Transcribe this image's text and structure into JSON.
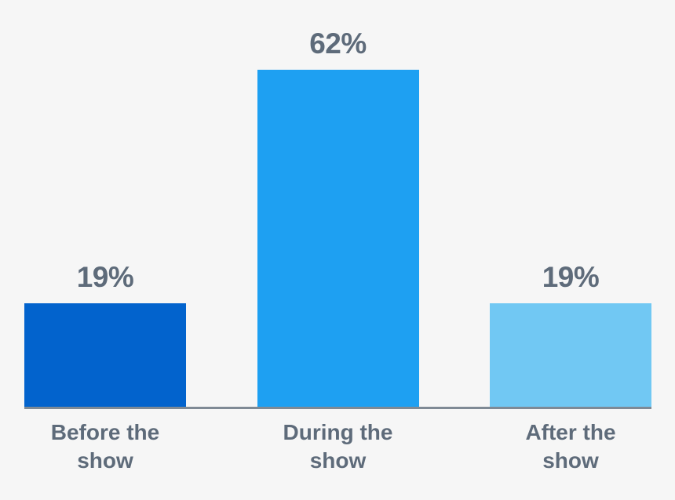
{
  "chart_data": {
    "type": "bar",
    "categories": [
      "Before the show",
      "During the show",
      "After the show"
    ],
    "values": [
      19,
      62,
      19
    ],
    "value_labels": [
      "19%",
      "62%",
      "19%"
    ],
    "bar_colors": [
      "#0263cd",
      "#1ea0f2",
      "#71c8f3"
    ],
    "title": "",
    "xlabel": "",
    "ylabel": "",
    "ylim": [
      0,
      62
    ],
    "grid": false,
    "legend": false,
    "background_color": "#f6f6f6",
    "axis_line_color": "#7f8a95",
    "text_color": "#5e6b7a"
  }
}
